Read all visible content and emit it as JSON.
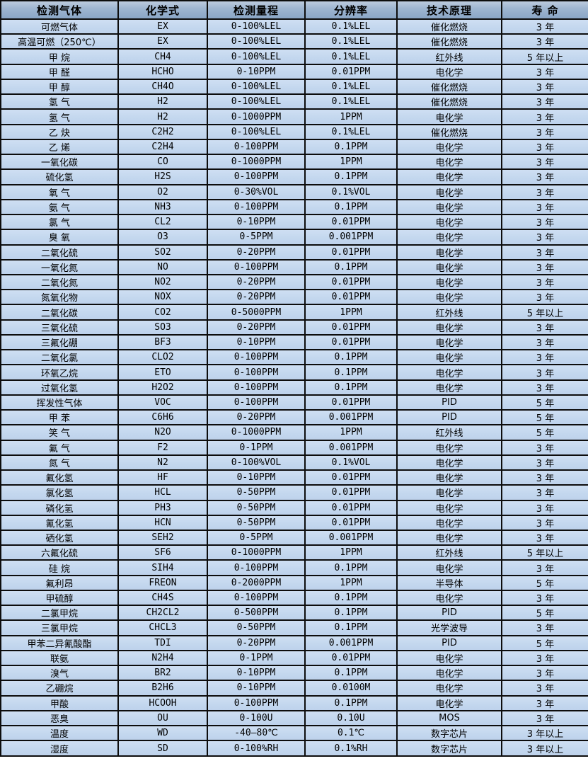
{
  "table": {
    "title": "gas-detector-sensor-spec-table",
    "columns": [
      {
        "key": "gas",
        "label": "检测气体"
      },
      {
        "key": "formula",
        "label": "化学式"
      },
      {
        "key": "range",
        "label": "检测量程"
      },
      {
        "key": "resolution",
        "label": "分辨率"
      },
      {
        "key": "principle",
        "label": "技术原理"
      },
      {
        "key": "lifespan",
        "label": "寿 命"
      }
    ],
    "rows": [
      [
        "可燃气体",
        "EX",
        "0-100%LEL",
        "0.1%LEL",
        "催化燃烧",
        "3 年"
      ],
      [
        "高温可燃（250℃）",
        "EX",
        "0-100%LEL",
        "0.1%LEL",
        "催化燃烧",
        "3 年"
      ],
      [
        "甲 烷",
        "CH4",
        "0-100%LEL",
        "0.1%LEL",
        "红外线",
        "5 年以上"
      ],
      [
        "甲 醛",
        "HCHO",
        "0-10PPM",
        "0.01PPM",
        "电化学",
        "3 年"
      ],
      [
        "甲 醇",
        "CH4O",
        "0-100%LEL",
        "0.1%LEL",
        "催化燃烧",
        "3 年"
      ],
      [
        "氢 气",
        "H2",
        "0-100%LEL",
        "0.1%LEL",
        "催化燃烧",
        "3 年"
      ],
      [
        "氢 气",
        "H2",
        "0-1000PPM",
        "1PPM",
        "电化学",
        "3 年"
      ],
      [
        "乙 炔",
        "C2H2",
        "0-100%LEL",
        "0.1%LEL",
        "催化燃烧",
        "3 年"
      ],
      [
        "乙 烯",
        "C2H4",
        "0-100PPM",
        "0.1PPM",
        "电化学",
        "3 年"
      ],
      [
        "一氧化碳",
        "CO",
        "0-1000PPM",
        "1PPM",
        "电化学",
        "3 年"
      ],
      [
        "硫化氢",
        "H2S",
        "0-100PPM",
        "0.1PPM",
        "电化学",
        "3 年"
      ],
      [
        "氧 气",
        "O2",
        "0-30%VOL",
        "0.1%VOL",
        "电化学",
        "3 年"
      ],
      [
        "氨 气",
        "NH3",
        "0-100PPM",
        "0.1PPM",
        "电化学",
        "3 年"
      ],
      [
        "氯 气",
        "CL2",
        "0-10PPM",
        "0.01PPM",
        "电化学",
        "3 年"
      ],
      [
        "臭 氧",
        "O3",
        "0-5PPM",
        "0.001PPM",
        "电化学",
        "3 年"
      ],
      [
        "二氧化硫",
        "SO2",
        "0-20PPM",
        "0.01PPM",
        "电化学",
        "3 年"
      ],
      [
        "一氧化氮",
        "NO",
        "0-100PPM",
        "0.1PPM",
        "电化学",
        "3 年"
      ],
      [
        "二氧化氮",
        "NO2",
        "0-20PPM",
        "0.01PPM",
        "电化学",
        "3 年"
      ],
      [
        "氮氧化物",
        "NOX",
        "0-20PPM",
        "0.01PPM",
        "电化学",
        "3 年"
      ],
      [
        "二氧化碳",
        "CO2",
        "0-5000PPM",
        "1PPM",
        "红外线",
        "5 年以上"
      ],
      [
        "三氧化硫",
        "SO3",
        "0-20PPM",
        "0.01PPM",
        "电化学",
        "3 年"
      ],
      [
        "三氟化硼",
        "BF3",
        "0-10PPM",
        "0.01PPM",
        "电化学",
        "3 年"
      ],
      [
        "二氧化氯",
        "CLO2",
        "0-100PPM",
        "0.1PPM",
        "电化学",
        "3 年"
      ],
      [
        "环氧乙烷",
        "ETO",
        "0-100PPM",
        "0.1PPM",
        "电化学",
        "3 年"
      ],
      [
        "过氧化氢",
        "H2O2",
        "0-100PPM",
        "0.1PPM",
        "电化学",
        "3 年"
      ],
      [
        "挥发性气体",
        "VOC",
        "0-100PPM",
        "0.01PPM",
        "PID",
        "5 年"
      ],
      [
        "甲 苯",
        "C6H6",
        "0-20PPM",
        "0.001PPM",
        "PID",
        "5 年"
      ],
      [
        "笑 气",
        "N2O",
        "0-1000PPM",
        "1PPM",
        "红外线",
        "5 年"
      ],
      [
        "氟 气",
        "F2",
        "0-1PPM",
        "0.001PPM",
        "电化学",
        "3 年"
      ],
      [
        "氮 气",
        "N2",
        "0-100%VOL",
        "0.1%VOL",
        "电化学",
        "3 年"
      ],
      [
        "氟化氢",
        "HF",
        "0-10PPM",
        "0.01PPM",
        "电化学",
        "3 年"
      ],
      [
        "氯化氢",
        "HCL",
        "0-50PPM",
        "0.01PPM",
        "电化学",
        "3 年"
      ],
      [
        "磷化氢",
        "PH3",
        "0-50PPM",
        "0.01PPM",
        "电化学",
        "3 年"
      ],
      [
        "氰化氢",
        "HCN",
        "0-50PPM",
        "0.01PPM",
        "电化学",
        "3 年"
      ],
      [
        "硒化氢",
        "SEH2",
        "0-5PPM",
        "0.001PPM",
        "电化学",
        "3 年"
      ],
      [
        "六氟化硫",
        "SF6",
        "0-1000PPM",
        "1PPM",
        "红外线",
        "5 年以上"
      ],
      [
        "硅 烷",
        "SIH4",
        "0-100PPM",
        "0.1PPM",
        "电化学",
        "3 年"
      ],
      [
        "氟利昂",
        "FREON",
        "0-2000PPM",
        "1PPM",
        "半导体",
        "5 年"
      ],
      [
        "甲硫醇",
        "CH4S",
        "0-100PPM",
        "0.1PPM",
        "电化学",
        "3 年"
      ],
      [
        "二氯甲烷",
        "CH2CL2",
        "0-500PPM",
        "0.1PPM",
        "PID",
        "5 年"
      ],
      [
        "三氯甲烷",
        "CHCL3",
        "0-50PPM",
        "0.1PPM",
        "光学波导",
        "3 年"
      ],
      [
        "甲苯二异氰酸酯",
        "TDI",
        "0-20PPM",
        "0.001PPM",
        "PID",
        "5 年"
      ],
      [
        "联氨",
        "N2H4",
        "0-1PPM",
        "0.01PPM",
        "电化学",
        "3 年"
      ],
      [
        "溴气",
        "BR2",
        "0-10PPM",
        "0.1PPM",
        "电化学",
        "3 年"
      ],
      [
        "乙硼烷",
        "B2H6",
        "0-10PPM",
        "0.0100M",
        "电化学",
        "3 年"
      ],
      [
        "甲酸",
        "HCOOH",
        "0-100PPM",
        "0.1PPM",
        "电化学",
        "3 年"
      ],
      [
        "恶臭",
        "OU",
        "0-100U",
        "0.10U",
        "MOS",
        "3 年"
      ],
      [
        "温度",
        "WD",
        "-40—80℃",
        "0.1℃",
        "数字芯片",
        "3 年以上"
      ],
      [
        "湿度",
        "SD",
        "0-100%RH",
        "0.1%RH",
        "数字芯片",
        "3 年以上"
      ]
    ]
  },
  "colors": {
    "header_bg_top": "#bccbde",
    "header_bg_bottom": "#8aa6c6",
    "row_bg_top": "#cfdff3",
    "row_bg_bottom": "#bed2ec",
    "border": "#0d0d0d",
    "text": "#000000"
  }
}
